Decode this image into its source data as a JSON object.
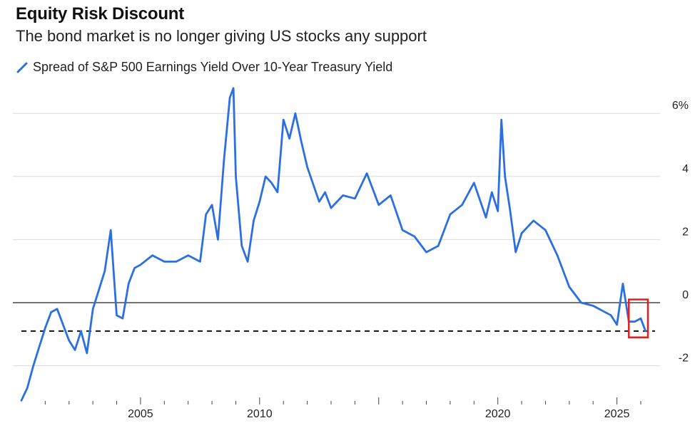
{
  "title": "Equity Risk Discount",
  "subtitle": "The bond market is no longer giving US stocks any support",
  "legend": {
    "label": "Spread of S&P 500 Earnings Yield Over 10-Year Treasury Yield",
    "icon": "legend-line-icon",
    "color": "#2b6fe3"
  },
  "colors": {
    "line": "#2b6fe3",
    "grid": "#d9d9d9",
    "zero": "#222222",
    "highlight": "#e02020"
  },
  "chart_data": {
    "type": "line",
    "title": "Equity Risk Discount",
    "subtitle": "The bond market is no longer giving US stocks any support",
    "xlabel": "",
    "ylabel": "",
    "xlim": [
      2000.0,
      2026.6
    ],
    "ylim": [
      -3.2,
      7.0
    ],
    "x_ticks": [
      2005,
      2010,
      2020,
      2025
    ],
    "x_tick_labels": [
      "2005",
      "2010",
      "2020",
      "2025"
    ],
    "y_ticks": [
      6,
      4,
      2,
      0,
      -2
    ],
    "y_tick_labels": [
      "6%",
      "4",
      "2",
      "0",
      "-2"
    ],
    "grid": true,
    "axis_side": "right",
    "series": [
      {
        "name": "Spread of S&P 500 Earnings Yield Over 10-Year Treasury Yield",
        "x": [
          2000.0,
          2000.25,
          2000.5,
          2000.75,
          2001.0,
          2001.25,
          2001.5,
          2001.75,
          2002.0,
          2002.25,
          2002.5,
          2002.75,
          2003.0,
          2003.25,
          2003.5,
          2003.75,
          2004.0,
          2004.25,
          2004.5,
          2004.75,
          2005.0,
          2005.5,
          2006.0,
          2006.5,
          2007.0,
          2007.5,
          2007.75,
          2008.0,
          2008.25,
          2008.5,
          2008.75,
          2008.9,
          2009.0,
          2009.25,
          2009.5,
          2009.75,
          2010.0,
          2010.25,
          2010.5,
          2010.75,
          2011.0,
          2011.25,
          2011.5,
          2011.75,
          2012.0,
          2012.5,
          2012.75,
          2013.0,
          2013.25,
          2013.5,
          2014.0,
          2014.5,
          2015.0,
          2015.5,
          2016.0,
          2016.5,
          2017.0,
          2017.5,
          2018.0,
          2018.5,
          2019.0,
          2019.5,
          2019.75,
          2020.0,
          2020.15,
          2020.3,
          2020.5,
          2020.75,
          2021.0,
          2021.5,
          2022.0,
          2022.5,
          2023.0,
          2023.5,
          2024.0,
          2024.5,
          2024.75,
          2025.0,
          2025.25,
          2025.5,
          2025.75,
          2026.0,
          2026.2
        ],
        "values": [
          -3.1,
          -2.7,
          -2.0,
          -1.4,
          -0.8,
          -0.3,
          -0.2,
          -0.7,
          -1.2,
          -1.5,
          -0.9,
          -1.6,
          -0.2,
          0.4,
          1.0,
          2.3,
          -0.4,
          -0.5,
          0.6,
          1.1,
          1.2,
          1.5,
          1.3,
          1.3,
          1.5,
          1.3,
          2.8,
          3.1,
          2.0,
          4.5,
          6.5,
          6.8,
          4.0,
          1.8,
          1.3,
          2.6,
          3.2,
          4.0,
          3.8,
          3.5,
          5.8,
          5.2,
          6.0,
          5.1,
          4.3,
          3.2,
          3.5,
          3.0,
          3.2,
          3.4,
          3.3,
          4.1,
          3.1,
          3.4,
          2.3,
          2.1,
          1.6,
          1.8,
          2.8,
          3.1,
          3.8,
          2.7,
          3.5,
          2.9,
          5.8,
          4.0,
          3.0,
          1.6,
          2.2,
          2.6,
          2.3,
          1.5,
          0.5,
          0.0,
          -0.1,
          -0.3,
          -0.4,
          -0.7,
          0.6,
          -0.6,
          -0.6,
          -0.5,
          -0.9
        ]
      }
    ],
    "reference_lines": [
      {
        "y": 0,
        "style": "solid"
      },
      {
        "y": -0.9,
        "style": "dashed"
      }
    ],
    "highlight_box": {
      "x": [
        2025.5,
        2026.3
      ],
      "y": [
        -1.1,
        0.1
      ],
      "color": "#e02020"
    }
  }
}
